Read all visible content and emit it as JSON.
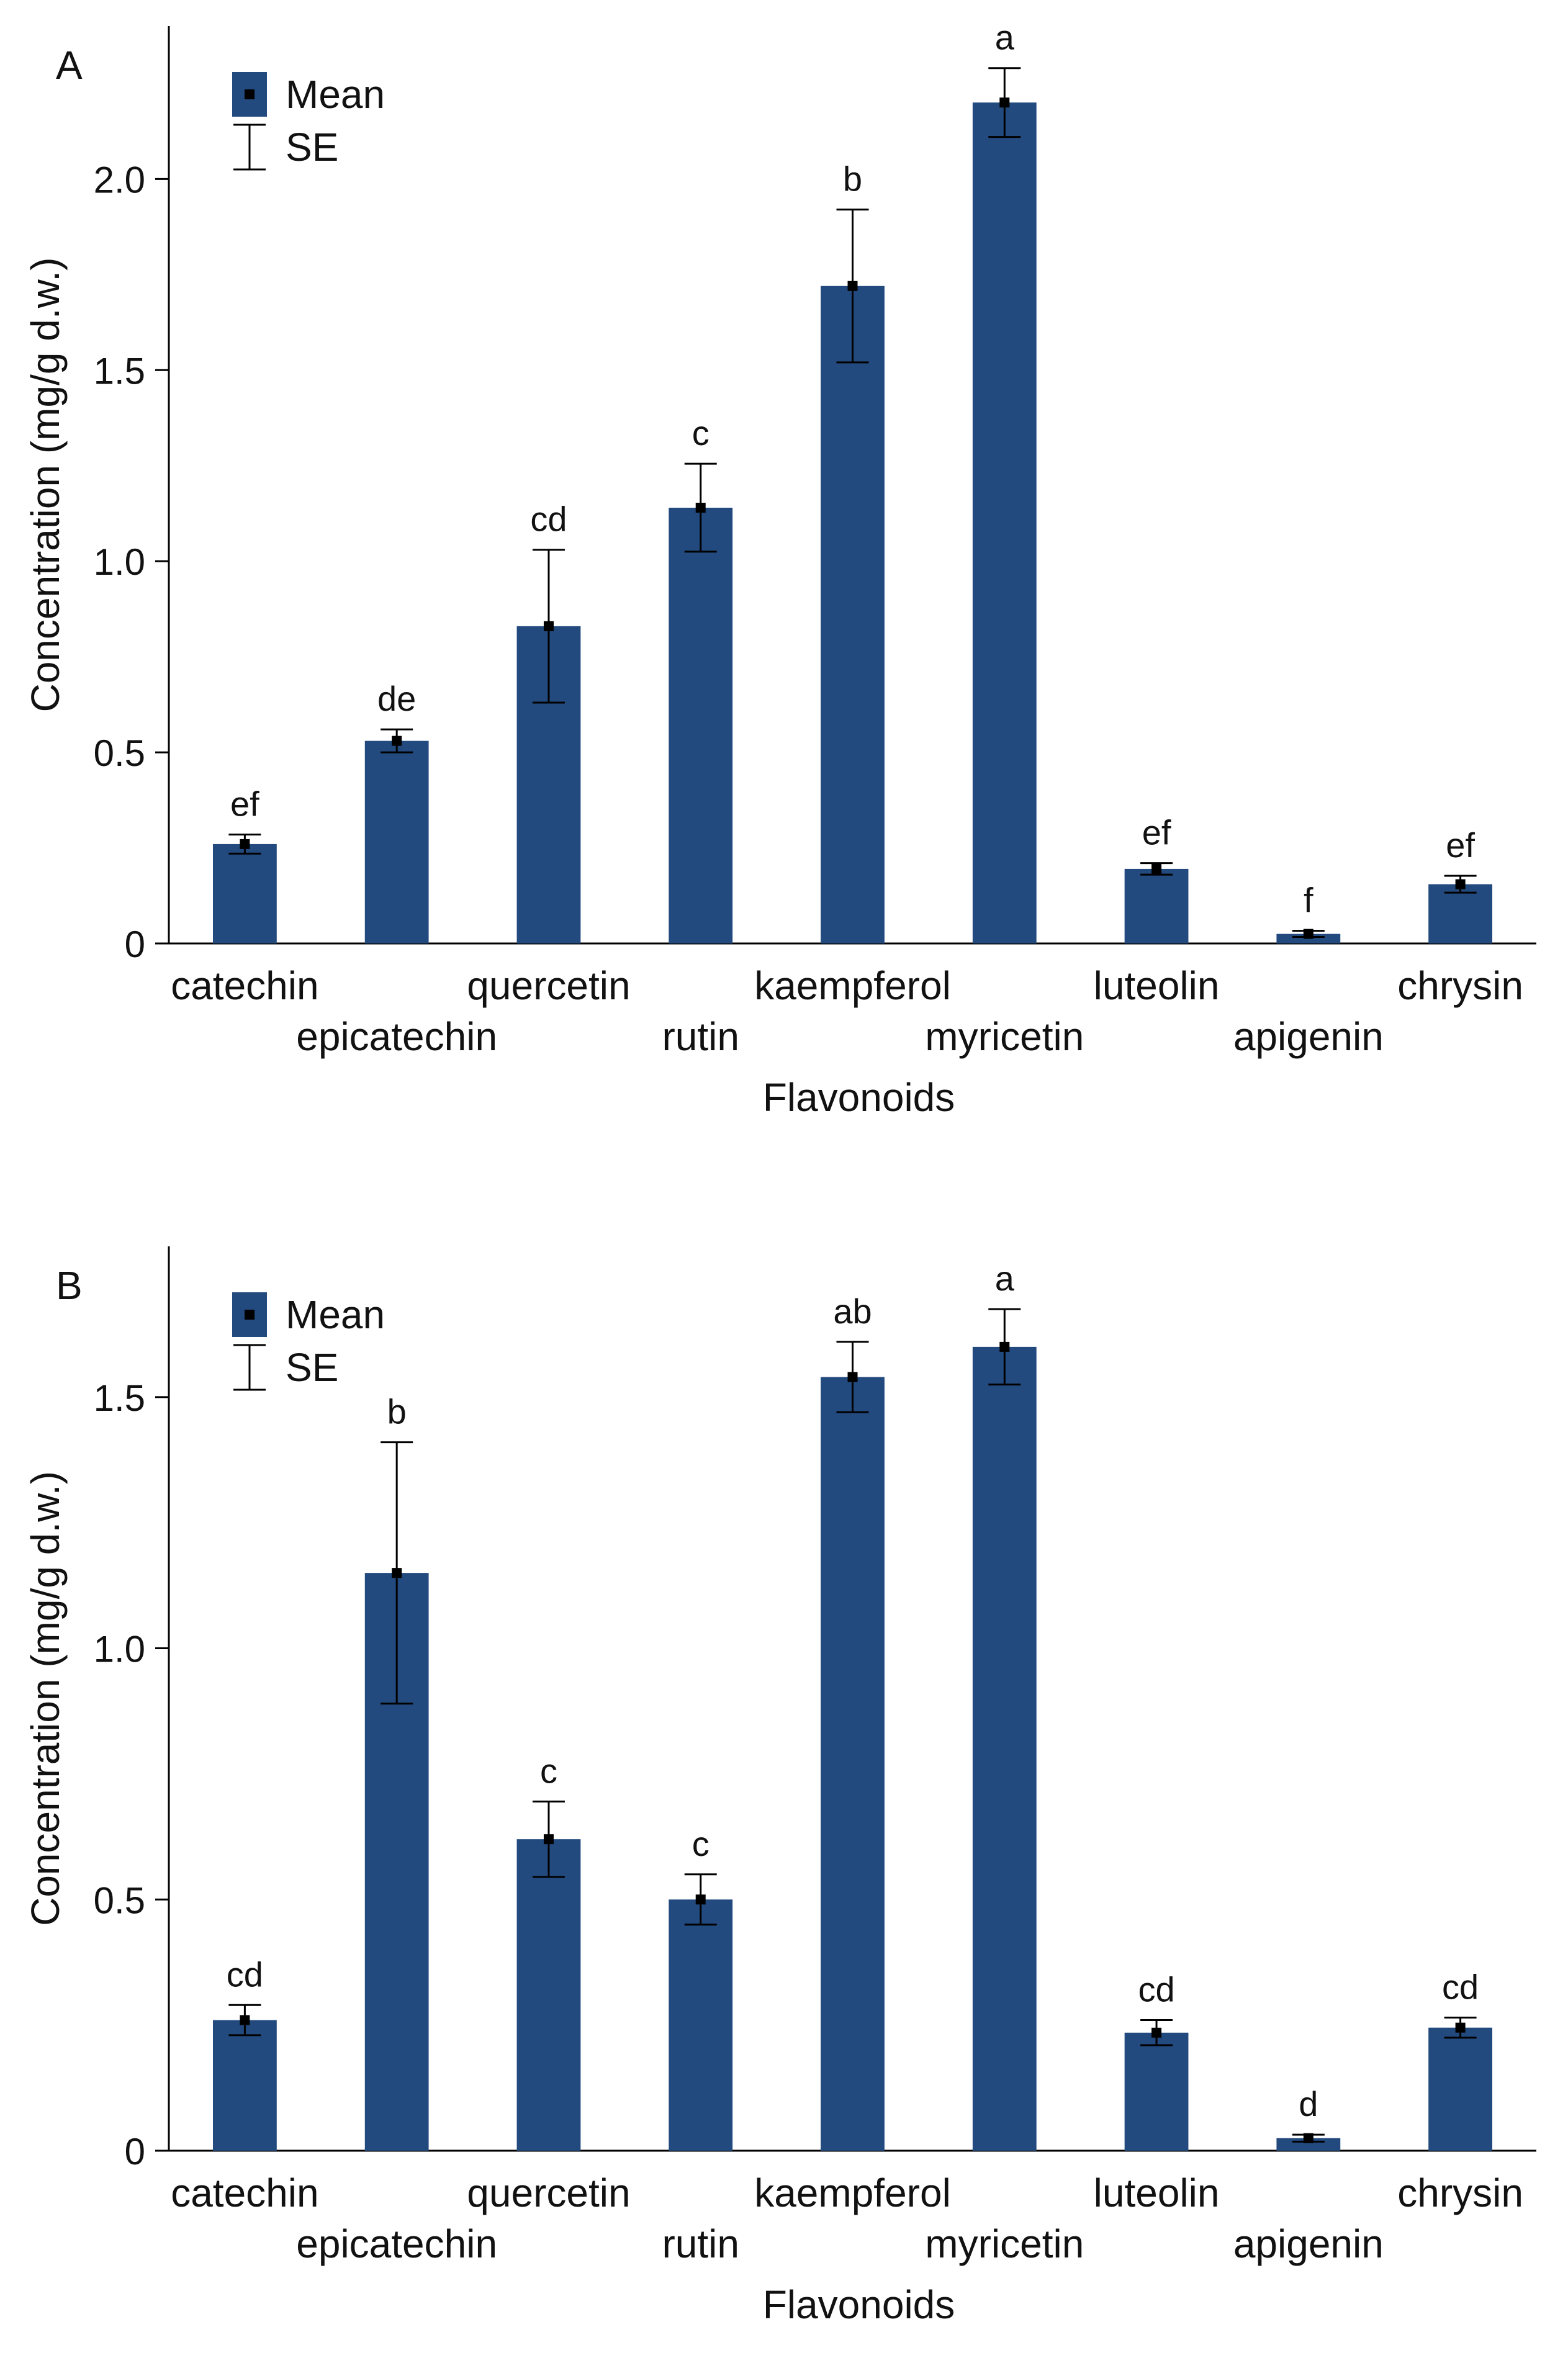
{
  "colors": {
    "bar": "#234a7e",
    "axis": "#000000",
    "text": "#111111"
  },
  "legend": {
    "mean_label": "Mean",
    "se_label": "SE"
  },
  "chart_data": [
    {
      "panel": "A",
      "type": "bar",
      "xlabel": "Flavonoids",
      "ylabel": "Concentration (mg/g d.w.)",
      "ylim": [
        0,
        2.4
      ],
      "yticks": [
        0,
        0.5,
        1.0,
        1.5,
        2.0
      ],
      "ytick_labels": [
        "0",
        "0.5",
        "1.0",
        "1.5",
        "2.0"
      ],
      "categories": [
        "catechin",
        "epicatechin",
        "quercetin",
        "rutin",
        "kaempferol",
        "myricetin",
        "luteolin",
        "apigenin",
        "chrysin"
      ],
      "values": [
        0.26,
        0.53,
        0.83,
        1.14,
        1.72,
        2.2,
        0.195,
        0.025,
        0.155
      ],
      "se": [
        0.025,
        0.03,
        0.2,
        0.115,
        0.2,
        0.09,
        0.015,
        0.008,
        0.022
      ],
      "significance_letters": [
        "ef",
        "de",
        "cd",
        "c",
        "b",
        "a",
        "ef",
        "f",
        "ef"
      ]
    },
    {
      "panel": "B",
      "type": "bar",
      "xlabel": "Flavonoids",
      "ylabel": "Concentration (mg/g d.w.)",
      "ylim": [
        0,
        1.8
      ],
      "yticks": [
        0,
        0.5,
        1.0,
        1.5
      ],
      "ytick_labels": [
        "0",
        "0.5",
        "1.0",
        "1.5"
      ],
      "categories": [
        "catechin",
        "epicatechin",
        "quercetin",
        "rutin",
        "kaempferol",
        "myricetin",
        "luteolin",
        "apigenin",
        "chrysin"
      ],
      "values": [
        0.26,
        1.15,
        0.62,
        0.5,
        1.54,
        1.6,
        0.235,
        0.025,
        0.245
      ],
      "se": [
        0.03,
        0.26,
        0.075,
        0.05,
        0.07,
        0.075,
        0.025,
        0.007,
        0.02
      ],
      "significance_letters": [
        "cd",
        "b",
        "c",
        "c",
        "ab",
        "a",
        "cd",
        "d",
        "cd"
      ]
    }
  ]
}
